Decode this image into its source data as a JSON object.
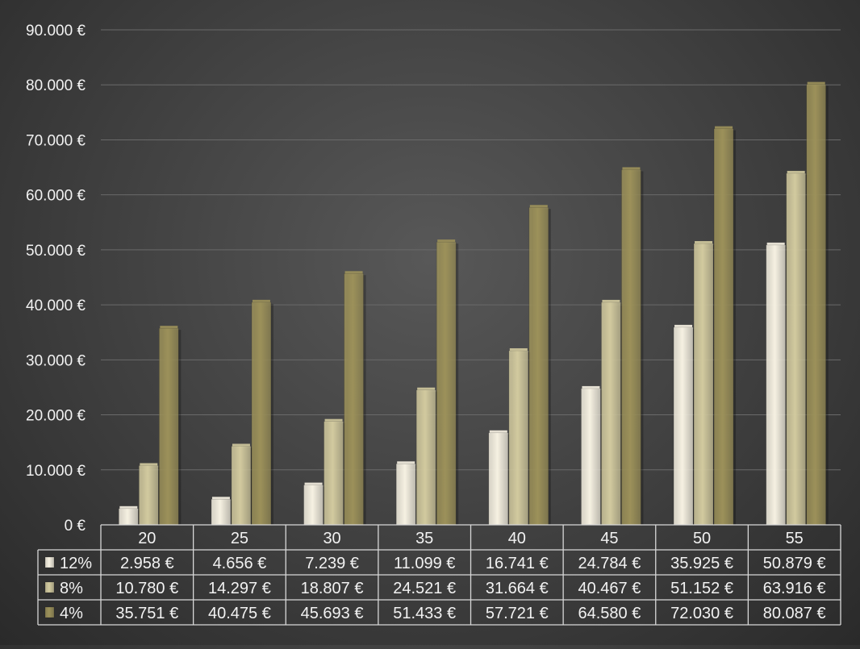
{
  "chart_data": {
    "type": "bar",
    "categories": [
      "20",
      "25",
      "30",
      "35",
      "40",
      "45",
      "50",
      "55"
    ],
    "series": [
      {
        "name": "12%",
        "values": [
          2958,
          4656,
          7239,
          11099,
          16741,
          24784,
          35925,
          50879
        ],
        "color": "#f6f1e2",
        "labels": [
          "2.958 €",
          "4.656 €",
          "7.239 €",
          "11.099 €",
          "16.741 €",
          "24.784 €",
          "35.925 €",
          "50.879 €"
        ]
      },
      {
        "name": "8%",
        "values": [
          10780,
          14297,
          18807,
          24521,
          31664,
          40467,
          51152,
          63916
        ],
        "color": "#d2ca9f",
        "labels": [
          "10.780 €",
          "14.297 €",
          "18.807 €",
          "24.521 €",
          "31.664 €",
          "40.467 €",
          "51.152 €",
          "63.916 €"
        ]
      },
      {
        "name": "4%",
        "values": [
          35751,
          40475,
          45693,
          51433,
          57721,
          64580,
          72030,
          80087
        ],
        "color": "#9c915a",
        "labels": [
          "35.751 €",
          "40.475 €",
          "45.693 €",
          "51.433 €",
          "57.721 €",
          "64.580 €",
          "72.030 €",
          "80.087 €"
        ]
      }
    ],
    "y_ticks": [
      "0 €",
      "10.000 €",
      "20.000 €",
      "30.000 €",
      "40.000 €",
      "50.000 €",
      "60.000 €",
      "70.000 €",
      "80.000 €",
      "90.000 €"
    ],
    "ylim": [
      0,
      90000
    ],
    "grid": true,
    "data_table": true,
    "colors": {
      "grid": "#6a6a6a",
      "table_border": "#d8d8d8",
      "text": "#f2f2f2"
    }
  }
}
